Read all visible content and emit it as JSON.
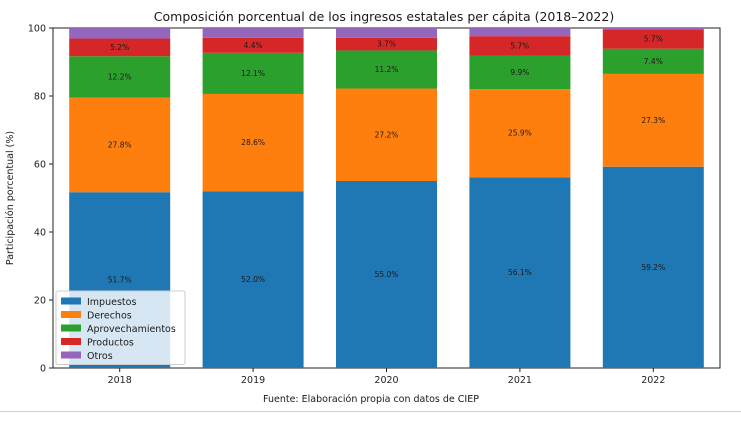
{
  "chart_data": {
    "type": "bar",
    "stacked": true,
    "title": "Composición porcentual de los ingresos estatales per cápita (2018–2022)",
    "xlabel": "",
    "ylabel": "Participación porcentual (%)",
    "ylim": [
      0,
      100
    ],
    "yticks": [
      0,
      20,
      40,
      60,
      80,
      100
    ],
    "categories": [
      "2018",
      "2019",
      "2020",
      "2021",
      "2022"
    ],
    "series": [
      {
        "name": "Impuestos",
        "color": "#1f77b4",
        "values": [
          51.7,
          52.0,
          55.0,
          56.1,
          59.2
        ],
        "labels": [
          "51.7%",
          "52.0%",
          "55.0%",
          "56.1%",
          "59.2%"
        ]
      },
      {
        "name": "Derechos",
        "color": "#ff7f0e",
        "values": [
          27.8,
          28.6,
          27.2,
          25.9,
          27.3
        ],
        "labels": [
          "27.8%",
          "28.6%",
          "27.2%",
          "25.9%",
          "27.3%"
        ]
      },
      {
        "name": "Aprovechamientos",
        "color": "#2ca02c",
        "values": [
          12.2,
          12.1,
          11.2,
          9.9,
          7.4
        ],
        "labels": [
          "12.2%",
          "12.1%",
          "11.2%",
          "9.9%",
          "7.4%"
        ]
      },
      {
        "name": "Productos",
        "color": "#d62728",
        "values": [
          5.2,
          4.4,
          3.7,
          5.7,
          5.7
        ],
        "labels": [
          "5.2%",
          "4.4%",
          "3.7%",
          "5.7%",
          "5.7%"
        ]
      },
      {
        "name": "Otros",
        "color": "#9467bd",
        "values": [
          3.1,
          2.9,
          2.9,
          2.4,
          0.4
        ],
        "labels": [
          "",
          "",
          "",
          "",
          ""
        ]
      }
    ],
    "legend_position": "lower-left",
    "grid": false
  },
  "source_note": "Fuente: Elaboración propia con datos de CIEP"
}
